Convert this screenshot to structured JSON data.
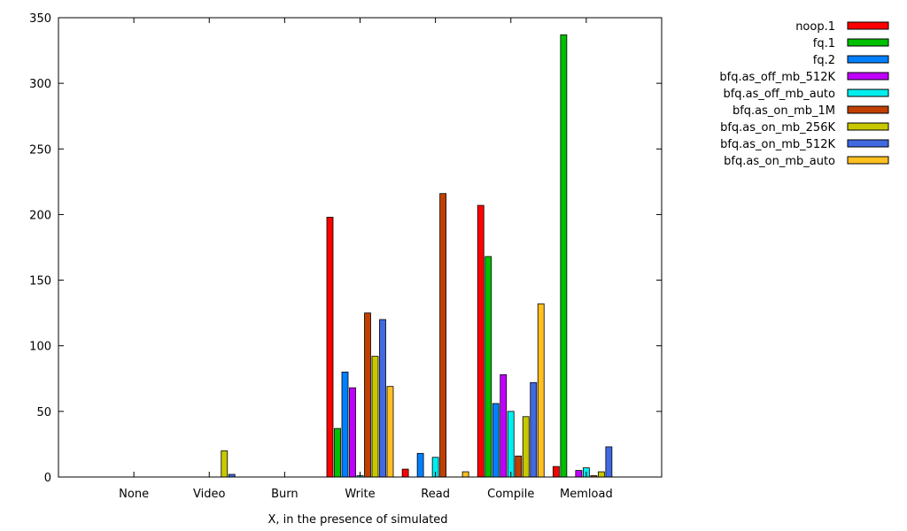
{
  "chart_data": {
    "type": "bar",
    "xlabel": "X, in the presence of simulated",
    "ylabel": "",
    "title": "",
    "ylim": [
      0,
      350
    ],
    "yticks": [
      0,
      50,
      100,
      150,
      200,
      250,
      300,
      350
    ],
    "grid": false,
    "legend_position": "top-right",
    "categories": [
      "None",
      "Video",
      "Burn",
      "Write",
      "Read",
      "Compile",
      "Memload"
    ],
    "series": [
      {
        "name": "noop.1",
        "color": "#ff0000",
        "values": [
          0,
          0,
          0,
          198,
          6,
          207,
          8
        ]
      },
      {
        "name": "fq.1",
        "color": "#00c000",
        "values": [
          0,
          0,
          0,
          37,
          0,
          168,
          337
        ]
      },
      {
        "name": "fq.2",
        "color": "#0080ff",
        "values": [
          0,
          0,
          0,
          80,
          18,
          56,
          0
        ]
      },
      {
        "name": "bfq.as_off_mb_512K",
        "color": "#c000ff",
        "values": [
          0,
          0,
          0,
          68,
          0,
          78,
          5
        ]
      },
      {
        "name": "bfq.as_off_mb_auto",
        "color": "#00eeee",
        "values": [
          0,
          0,
          0,
          1,
          15,
          50,
          7
        ]
      },
      {
        "name": "bfq.as_on_mb_1M",
        "color": "#c04000",
        "values": [
          0,
          0,
          0,
          125,
          216,
          16,
          1
        ]
      },
      {
        "name": "bfq.as_on_mb_256K",
        "color": "#c8c800",
        "values": [
          0,
          20,
          0,
          92,
          0,
          46,
          4
        ]
      },
      {
        "name": "bfq.as_on_mb_512K",
        "color": "#4169e1",
        "values": [
          0,
          2,
          0,
          120,
          0,
          72,
          23
        ]
      },
      {
        "name": "bfq.as_on_mb_auto",
        "color": "#ffc020",
        "values": [
          0,
          0,
          0,
          69,
          4,
          132,
          0
        ]
      }
    ]
  }
}
